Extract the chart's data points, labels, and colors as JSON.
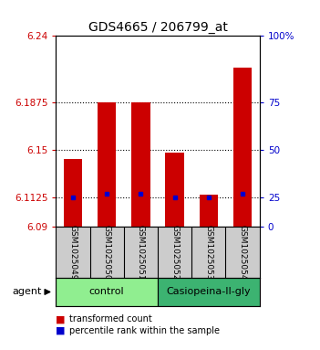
{
  "title": "GDS4665 / 206799_at",
  "samples": [
    "GSM1025049",
    "GSM1025050",
    "GSM1025051",
    "GSM1025052",
    "GSM1025053",
    "GSM1025054"
  ],
  "bar_bottoms": [
    6.09,
    6.09,
    6.09,
    6.09,
    6.09,
    6.09
  ],
  "bar_tops": [
    6.143,
    6.1875,
    6.1875,
    6.148,
    6.115,
    6.215
  ],
  "blue_dots": [
    6.1125,
    6.116,
    6.116,
    6.1125,
    6.1125,
    6.116
  ],
  "ylim": [
    6.09,
    6.24
  ],
  "yticks_left": [
    6.09,
    6.1125,
    6.15,
    6.1875,
    6.24
  ],
  "yticks_right": [
    0,
    25,
    50,
    75,
    100
  ],
  "yticks_right_pos": [
    6.09,
    6.1125,
    6.15,
    6.1875,
    6.24
  ],
  "hlines": [
    6.1125,
    6.15,
    6.1875
  ],
  "bar_color": "#cc0000",
  "dot_color": "#0000cc",
  "bar_width": 0.55,
  "groups": [
    {
      "label": "control",
      "samples": [
        0,
        1,
        2
      ],
      "color": "#90ee90"
    },
    {
      "label": "Casiopeina-II-gly",
      "samples": [
        3,
        4,
        5
      ],
      "color": "#3cb371"
    }
  ],
  "agent_label": "agent",
  "legend_items": [
    {
      "label": "transformed count",
      "color": "#cc0000"
    },
    {
      "label": "percentile rank within the sample",
      "color": "#0000cc"
    }
  ],
  "left_color": "#cc0000",
  "right_color": "#0000cc",
  "title_fontsize": 10,
  "tick_fontsize": 7.5,
  "sample_fontsize": 6.5,
  "group_fontsize": 8,
  "legend_fontsize": 7
}
